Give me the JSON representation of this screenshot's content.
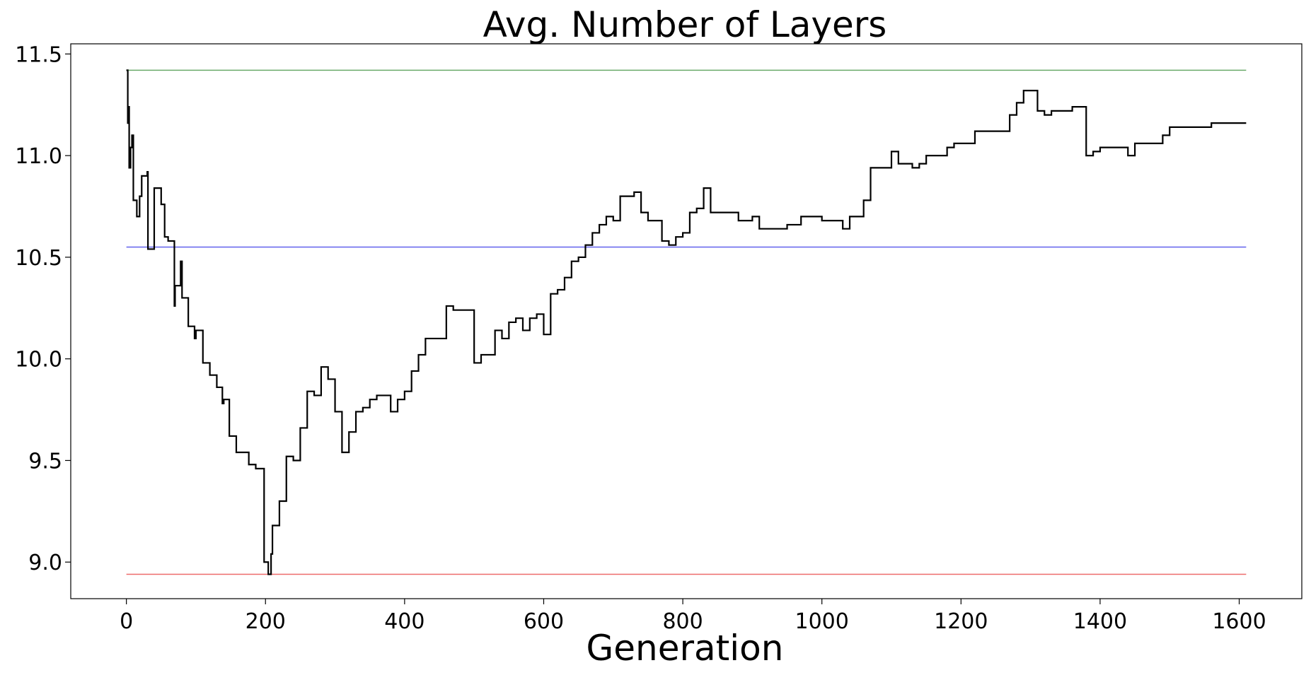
{
  "chart_data": {
    "type": "line",
    "title": "Avg. Number of Layers",
    "xlabel": "Generation",
    "ylabel": "",
    "xlim": [
      -80,
      1690
    ],
    "ylim": [
      8.82,
      11.55
    ],
    "xticks": [
      0,
      200,
      400,
      600,
      800,
      1000,
      1200,
      1400,
      1600
    ],
    "xtick_labels": [
      "0",
      "200",
      "400",
      "600",
      "800",
      "1000",
      "1200",
      "1400",
      "1600"
    ],
    "yticks": [
      9.0,
      9.5,
      10.0,
      10.5,
      11.0,
      11.5
    ],
    "ytick_labels": [
      "9.0",
      "9.5",
      "10.0",
      "10.5",
      "11.0",
      "11.5"
    ],
    "grid": false,
    "reference_lines": [
      {
        "y": 11.42,
        "x_range": [
          0,
          1610
        ],
        "color": "#6aaa6a"
      },
      {
        "y": 10.55,
        "x_range": [
          0,
          1610
        ],
        "color": "#6b6bee"
      },
      {
        "y": 8.94,
        "x_range": [
          0,
          1610
        ],
        "color": "#ee6b6b"
      }
    ],
    "series": [
      {
        "color": "#000000",
        "step": true,
        "points": [
          [
            0,
            11.42
          ],
          [
            2,
            11.16
          ],
          [
            3,
            11.24
          ],
          [
            4,
            10.94
          ],
          [
            6,
            11.04
          ],
          [
            8,
            11.1
          ],
          [
            10,
            10.78
          ],
          [
            15,
            10.7
          ],
          [
            19,
            10.8
          ],
          [
            22,
            10.9
          ],
          [
            30,
            10.92
          ],
          [
            31,
            10.54
          ],
          [
            40,
            10.84
          ],
          [
            50,
            10.76
          ],
          [
            55,
            10.6
          ],
          [
            60,
            10.58
          ],
          [
            69,
            10.26
          ],
          [
            70,
            10.36
          ],
          [
            78,
            10.48
          ],
          [
            80,
            10.3
          ],
          [
            89,
            10.16
          ],
          [
            98,
            10.1
          ],
          [
            100,
            10.14
          ],
          [
            110,
            9.98
          ],
          [
            120,
            9.92
          ],
          [
            130,
            9.86
          ],
          [
            138,
            9.78
          ],
          [
            140,
            9.8
          ],
          [
            148,
            9.62
          ],
          [
            158,
            9.54
          ],
          [
            176,
            9.48
          ],
          [
            186,
            9.46
          ],
          [
            198,
            9.0
          ],
          [
            204,
            8.94
          ],
          [
            208,
            9.04
          ],
          [
            210,
            9.18
          ],
          [
            220,
            9.3
          ],
          [
            230,
            9.52
          ],
          [
            240,
            9.5
          ],
          [
            250,
            9.66
          ],
          [
            260,
            9.84
          ],
          [
            270,
            9.82
          ],
          [
            280,
            9.96
          ],
          [
            290,
            9.9
          ],
          [
            300,
            9.74
          ],
          [
            310,
            9.54
          ],
          [
            320,
            9.64
          ],
          [
            330,
            9.74
          ],
          [
            340,
            9.76
          ],
          [
            350,
            9.8
          ],
          [
            360,
            9.82
          ],
          [
            380,
            9.74
          ],
          [
            390,
            9.8
          ],
          [
            400,
            9.84
          ],
          [
            410,
            9.94
          ],
          [
            420,
            10.02
          ],
          [
            430,
            10.1
          ],
          [
            460,
            10.26
          ],
          [
            470,
            10.24
          ],
          [
            500,
            9.98
          ],
          [
            510,
            10.02
          ],
          [
            530,
            10.14
          ],
          [
            540,
            10.1
          ],
          [
            550,
            10.18
          ],
          [
            560,
            10.2
          ],
          [
            570,
            10.14
          ],
          [
            580,
            10.2
          ],
          [
            590,
            10.22
          ],
          [
            600,
            10.12
          ],
          [
            610,
            10.32
          ],
          [
            620,
            10.34
          ],
          [
            630,
            10.4
          ],
          [
            640,
            10.48
          ],
          [
            650,
            10.5
          ],
          [
            660,
            10.56
          ],
          [
            670,
            10.62
          ],
          [
            680,
            10.66
          ],
          [
            690,
            10.7
          ],
          [
            700,
            10.68
          ],
          [
            710,
            10.8
          ],
          [
            730,
            10.82
          ],
          [
            740,
            10.72
          ],
          [
            750,
            10.68
          ],
          [
            770,
            10.58
          ],
          [
            780,
            10.56
          ],
          [
            790,
            10.6
          ],
          [
            800,
            10.62
          ],
          [
            810,
            10.72
          ],
          [
            820,
            10.74
          ],
          [
            830,
            10.84
          ],
          [
            840,
            10.72
          ],
          [
            880,
            10.68
          ],
          [
            900,
            10.7
          ],
          [
            910,
            10.64
          ],
          [
            950,
            10.66
          ],
          [
            970,
            10.7
          ],
          [
            1000,
            10.68
          ],
          [
            1030,
            10.64
          ],
          [
            1040,
            10.7
          ],
          [
            1060,
            10.78
          ],
          [
            1070,
            10.94
          ],
          [
            1100,
            11.02
          ],
          [
            1110,
            10.96
          ],
          [
            1130,
            10.94
          ],
          [
            1140,
            10.96
          ],
          [
            1150,
            11.0
          ],
          [
            1180,
            11.04
          ],
          [
            1190,
            11.06
          ],
          [
            1220,
            11.12
          ],
          [
            1270,
            11.2
          ],
          [
            1280,
            11.26
          ],
          [
            1290,
            11.32
          ],
          [
            1310,
            11.22
          ],
          [
            1320,
            11.2
          ],
          [
            1330,
            11.22
          ],
          [
            1360,
            11.24
          ],
          [
            1380,
            11.0
          ],
          [
            1390,
            11.02
          ],
          [
            1400,
            11.04
          ],
          [
            1440,
            11.0
          ],
          [
            1450,
            11.06
          ],
          [
            1490,
            11.1
          ],
          [
            1500,
            11.14
          ],
          [
            1560,
            11.16
          ],
          [
            1610,
            11.16
          ]
        ]
      }
    ]
  }
}
